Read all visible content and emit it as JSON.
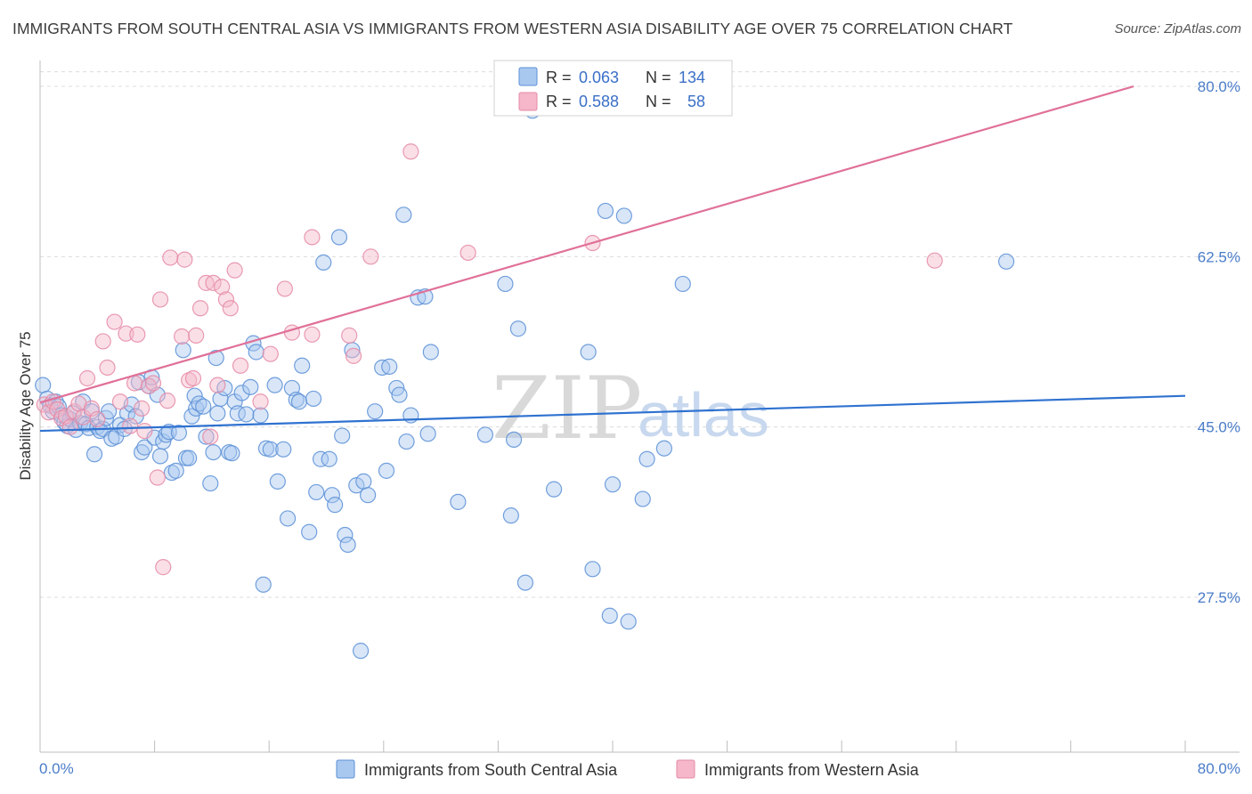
{
  "header": {
    "title": "IMMIGRANTS FROM SOUTH CENTRAL ASIA VS IMMIGRANTS FROM WESTERN ASIA DISABILITY AGE OVER 75 CORRELATION CHART",
    "source": "Source: ZipAtlas.com"
  },
  "watermark": {
    "zip": "ZIP",
    "atlas": "atlas"
  },
  "colors": {
    "blue_fill": "#a9c8f0",
    "blue_stroke": "#5b8fd6",
    "blue_line": "#2f72d0",
    "pink_fill": "#f5b7c9",
    "pink_stroke": "#e58aa5",
    "pink_line": "#e07098",
    "grid": "#dcdcdc",
    "label": "#4a7cc9"
  },
  "legend": {
    "r_label": "R =",
    "n_label": "N =",
    "rows": [
      {
        "r": "0.063",
        "n": "134",
        "color": "blue"
      },
      {
        "r": "0.588",
        "n": "58",
        "color": "pink"
      }
    ]
  },
  "chart_data": {
    "type": "scatter",
    "title": "IMMIGRANTS FROM SOUTH CENTRAL ASIA VS IMMIGRANTS FROM WESTERN ASIA DISABILITY AGE OVER 75 CORRELATION CHART",
    "xlabel": "",
    "ylabel": "Disability Age Over 75",
    "xlim": [
      0,
      80
    ],
    "ylim": [
      10,
      81.5
    ],
    "x_tick_labels": [
      "0.0%",
      "80.0%"
    ],
    "y_ticks": [
      {
        "value": 80,
        "label": "80.0%"
      },
      {
        "value": 62.5,
        "label": "62.5%"
      },
      {
        "value": 45,
        "label": "45.0%"
      },
      {
        "value": 27.5,
        "label": "27.5%"
      }
    ],
    "series": [
      {
        "name": "Immigrants from South Central Asia",
        "color": "blue",
        "trend": {
          "x1": 0,
          "y1": 44.6,
          "x2": 80,
          "y2": 48.2
        },
        "points": [
          [
            0.2,
            49.3
          ],
          [
            0.5,
            47.9
          ],
          [
            0.7,
            47.2
          ],
          [
            0.9,
            46.6
          ],
          [
            1.1,
            47.6
          ],
          [
            1.3,
            47.1
          ],
          [
            1.5,
            46.2
          ],
          [
            1.7,
            45.5
          ],
          [
            1.9,
            45.1
          ],
          [
            2.1,
            45.8
          ],
          [
            2.3,
            46.4
          ],
          [
            2.5,
            44.7
          ],
          [
            2.8,
            45.4
          ],
          [
            3.0,
            47.6
          ],
          [
            3.2,
            45.3
          ],
          [
            3.4,
            44.9
          ],
          [
            3.6,
            46.6
          ],
          [
            3.8,
            42.2
          ],
          [
            4.0,
            45.0
          ],
          [
            4.2,
            44.6
          ],
          [
            4.4,
            44.8
          ],
          [
            4.6,
            45.9
          ],
          [
            4.8,
            46.6
          ],
          [
            5.0,
            43.8
          ],
          [
            5.3,
            44.0
          ],
          [
            5.6,
            45.2
          ],
          [
            5.9,
            44.8
          ],
          [
            6.1,
            46.4
          ],
          [
            6.4,
            47.3
          ],
          [
            6.7,
            46.1
          ],
          [
            6.9,
            49.6
          ],
          [
            7.1,
            42.4
          ],
          [
            7.3,
            42.9
          ],
          [
            7.6,
            49.2
          ],
          [
            7.8,
            50.1
          ],
          [
            8.0,
            43.9
          ],
          [
            8.2,
            48.3
          ],
          [
            8.4,
            42.0
          ],
          [
            8.6,
            43.5
          ],
          [
            8.8,
            44.2
          ],
          [
            9.0,
            44.5
          ],
          [
            9.2,
            40.3
          ],
          [
            9.5,
            40.5
          ],
          [
            9.7,
            44.4
          ],
          [
            10.0,
            52.9
          ],
          [
            10.2,
            41.8
          ],
          [
            10.4,
            41.8
          ],
          [
            10.6,
            46.1
          ],
          [
            10.8,
            48.2
          ],
          [
            10.9,
            46.9
          ],
          [
            11.1,
            47.4
          ],
          [
            11.4,
            47.1
          ],
          [
            11.6,
            44.0
          ],
          [
            11.9,
            39.2
          ],
          [
            12.1,
            42.4
          ],
          [
            12.3,
            52.1
          ],
          [
            12.4,
            46.4
          ],
          [
            12.6,
            47.9
          ],
          [
            12.9,
            49.0
          ],
          [
            13.2,
            42.4
          ],
          [
            13.4,
            42.3
          ],
          [
            13.6,
            47.6
          ],
          [
            13.8,
            46.4
          ],
          [
            14.1,
            48.5
          ],
          [
            14.4,
            46.3
          ],
          [
            14.7,
            49.1
          ],
          [
            14.9,
            53.6
          ],
          [
            15.1,
            52.7
          ],
          [
            15.4,
            46.2
          ],
          [
            15.6,
            28.8
          ],
          [
            15.8,
            42.8
          ],
          [
            16.1,
            42.7
          ],
          [
            16.4,
            49.3
          ],
          [
            16.6,
            39.4
          ],
          [
            17.0,
            42.7
          ],
          [
            17.3,
            35.6
          ],
          [
            17.6,
            49.0
          ],
          [
            17.9,
            47.8
          ],
          [
            18.1,
            47.6
          ],
          [
            18.3,
            51.3
          ],
          [
            18.8,
            34.2
          ],
          [
            19.1,
            47.9
          ],
          [
            19.3,
            38.3
          ],
          [
            19.6,
            41.7
          ],
          [
            19.8,
            61.9
          ],
          [
            20.2,
            41.7
          ],
          [
            20.4,
            38.0
          ],
          [
            20.6,
            37.0
          ],
          [
            20.9,
            64.5
          ],
          [
            21.1,
            44.1
          ],
          [
            21.3,
            33.9
          ],
          [
            21.5,
            32.9
          ],
          [
            21.8,
            52.9
          ],
          [
            22.1,
            39.0
          ],
          [
            22.4,
            22.0
          ],
          [
            22.6,
            39.4
          ],
          [
            22.9,
            38.0
          ],
          [
            23.4,
            46.6
          ],
          [
            23.9,
            51.1
          ],
          [
            24.2,
            40.5
          ],
          [
            24.4,
            51.2
          ],
          [
            24.9,
            49.0
          ],
          [
            25.1,
            48.3
          ],
          [
            25.4,
            66.8
          ],
          [
            25.6,
            43.5
          ],
          [
            25.9,
            46.2
          ],
          [
            26.4,
            58.3
          ],
          [
            26.9,
            58.4
          ],
          [
            27.1,
            44.3
          ],
          [
            27.3,
            52.7
          ],
          [
            29.2,
            37.3
          ],
          [
            31.1,
            44.2
          ],
          [
            32.5,
            59.7
          ],
          [
            32.9,
            35.9
          ],
          [
            33.1,
            43.7
          ],
          [
            33.4,
            55.1
          ],
          [
            33.9,
            29.0
          ],
          [
            34.4,
            77.5
          ],
          [
            35.9,
            38.6
          ],
          [
            38.3,
            52.7
          ],
          [
            38.6,
            30.4
          ],
          [
            39.5,
            67.2
          ],
          [
            39.8,
            25.6
          ],
          [
            40.0,
            39.1
          ],
          [
            40.8,
            66.7
          ],
          [
            41.1,
            25.0
          ],
          [
            42.1,
            37.6
          ],
          [
            42.4,
            41.7
          ],
          [
            43.6,
            42.8
          ],
          [
            44.9,
            59.7
          ],
          [
            67.5,
            62.0
          ]
        ]
      },
      {
        "name": "Immigrants from Western Asia",
        "color": "pink",
        "trend": {
          "x1": 0,
          "y1": 47.5,
          "x2": 76.4,
          "y2": 80.0
        },
        "points": [
          [
            0.3,
            47.3
          ],
          [
            0.6,
            46.5
          ],
          [
            0.9,
            47.6
          ],
          [
            1.2,
            46.8
          ],
          [
            1.5,
            45.9
          ],
          [
            1.8,
            46.1
          ],
          [
            2.1,
            45.0
          ],
          [
            2.4,
            46.6
          ],
          [
            2.7,
            47.4
          ],
          [
            3.0,
            46.0
          ],
          [
            3.3,
            50.0
          ],
          [
            3.6,
            46.9
          ],
          [
            4.0,
            45.8
          ],
          [
            4.4,
            53.8
          ],
          [
            4.7,
            51.1
          ],
          [
            5.2,
            55.8
          ],
          [
            5.6,
            47.6
          ],
          [
            6.0,
            54.6
          ],
          [
            6.3,
            45.1
          ],
          [
            6.6,
            49.5
          ],
          [
            6.8,
            54.5
          ],
          [
            7.1,
            46.9
          ],
          [
            7.3,
            44.6
          ],
          [
            7.6,
            49.2
          ],
          [
            7.9,
            49.5
          ],
          [
            8.2,
            39.8
          ],
          [
            8.4,
            58.1
          ],
          [
            8.6,
            30.6
          ],
          [
            8.9,
            47.7
          ],
          [
            9.1,
            62.4
          ],
          [
            9.9,
            54.3
          ],
          [
            10.1,
            62.2
          ],
          [
            10.4,
            49.8
          ],
          [
            10.7,
            50.0
          ],
          [
            10.9,
            54.4
          ],
          [
            11.2,
            57.2
          ],
          [
            11.6,
            59.8
          ],
          [
            11.9,
            44.0
          ],
          [
            12.1,
            59.8
          ],
          [
            12.4,
            49.3
          ],
          [
            12.7,
            59.4
          ],
          [
            13.0,
            58.1
          ],
          [
            13.3,
            57.2
          ],
          [
            13.6,
            61.1
          ],
          [
            14.0,
            51.3
          ],
          [
            15.4,
            47.6
          ],
          [
            16.1,
            52.5
          ],
          [
            17.1,
            59.2
          ],
          [
            17.6,
            54.7
          ],
          [
            19.0,
            64.5
          ],
          [
            19.0,
            54.5
          ],
          [
            21.6,
            54.4
          ],
          [
            21.9,
            52.3
          ],
          [
            23.1,
            62.5
          ],
          [
            25.9,
            73.3
          ],
          [
            29.9,
            62.9
          ],
          [
            38.6,
            63.9
          ],
          [
            62.5,
            62.1
          ]
        ]
      }
    ]
  },
  "bottom_legend": [
    {
      "label": "Immigrants from South Central Asia",
      "color": "blue"
    },
    {
      "label": "Immigrants from Western Asia",
      "color": "pink"
    }
  ]
}
